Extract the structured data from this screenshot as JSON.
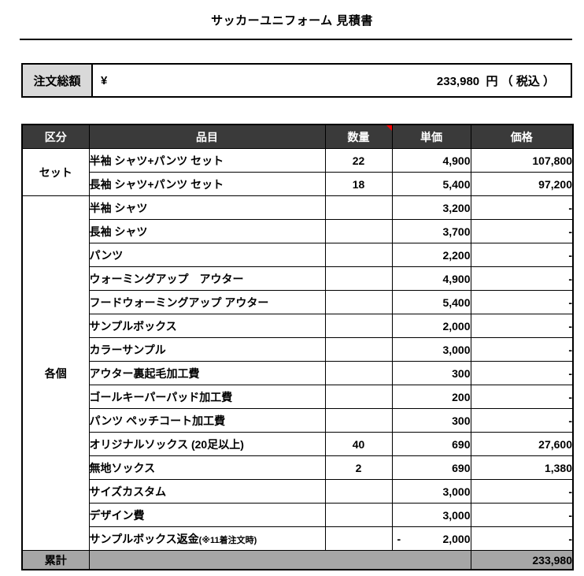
{
  "title": "サッカーユニフォーム 見積書",
  "summary": {
    "label": "注文総額",
    "currency": "¥",
    "amount": "233,980",
    "suffix": "円 （ 税込 ）"
  },
  "table": {
    "headers": {
      "category": "区分",
      "item": "品目",
      "qty": "数量",
      "unit_price": "単価",
      "price": "価格"
    },
    "comment_marker_on": "qty",
    "groups": [
      {
        "label": "セット",
        "row_count": 2
      },
      {
        "label": "各個",
        "row_count": 15
      }
    ],
    "rows": [
      {
        "item": "半袖 シャツ+パンツ セット",
        "qty": "22",
        "unit_price": "4,900",
        "price": "107,800"
      },
      {
        "item": "長袖 シャツ+パンツ セット",
        "qty": "18",
        "unit_price": "5,400",
        "price": "97,200"
      },
      {
        "item": "半袖 シャツ",
        "qty": "",
        "unit_price": "3,200",
        "price": "-"
      },
      {
        "item": "長袖 シャツ",
        "qty": "",
        "unit_price": "3,700",
        "price": "-"
      },
      {
        "item": "パンツ",
        "qty": "",
        "unit_price": "2,200",
        "price": "-"
      },
      {
        "item": "ウォーミングアップ　アウター",
        "qty": "",
        "unit_price": "4,900",
        "price": "-"
      },
      {
        "item": "フードウォーミングアップ アウター",
        "qty": "",
        "unit_price": "5,400",
        "price": "-"
      },
      {
        "item": "サンプルボックス",
        "qty": "",
        "unit_price": "2,000",
        "price": "-"
      },
      {
        "item": "カラーサンプル",
        "qty": "",
        "unit_price": "3,000",
        "price": "-"
      },
      {
        "item": "アウター裏起毛加工費",
        "qty": "",
        "unit_price": "300",
        "price": "-"
      },
      {
        "item": "ゴールキーパーパッド加工費",
        "qty": "",
        "unit_price": "200",
        "price": "-"
      },
      {
        "item": "パンツ ペッチコート加工費",
        "qty": "",
        "unit_price": "300",
        "price": "-"
      },
      {
        "item": "オリジナルソックス (20足以上)",
        "qty": "40",
        "unit_price": "690",
        "price": "27,600"
      },
      {
        "item": "無地ソックス",
        "qty": "2",
        "unit_price": "690",
        "price": "1,380"
      },
      {
        "item": "サイズカスタム",
        "qty": "",
        "unit_price": "3,000",
        "price": "-"
      },
      {
        "item": "デザイン費",
        "qty": "",
        "unit_price": "3,000",
        "price": "-"
      },
      {
        "item": "サンプルボックス返金",
        "item_note": "(※11着注文時)",
        "qty": "",
        "unit_price": "2,000",
        "unit_price_negative": true,
        "price": "-"
      }
    ],
    "total": {
      "label": "累計",
      "price": "233,980"
    }
  },
  "colors": {
    "header_bg": "#3a3a3a",
    "header_text": "#ffffff",
    "group_bg": "#d9d9d9",
    "total_bg": "#a6a6a6",
    "border": "#000000",
    "comment_marker": "#ff0000"
  }
}
